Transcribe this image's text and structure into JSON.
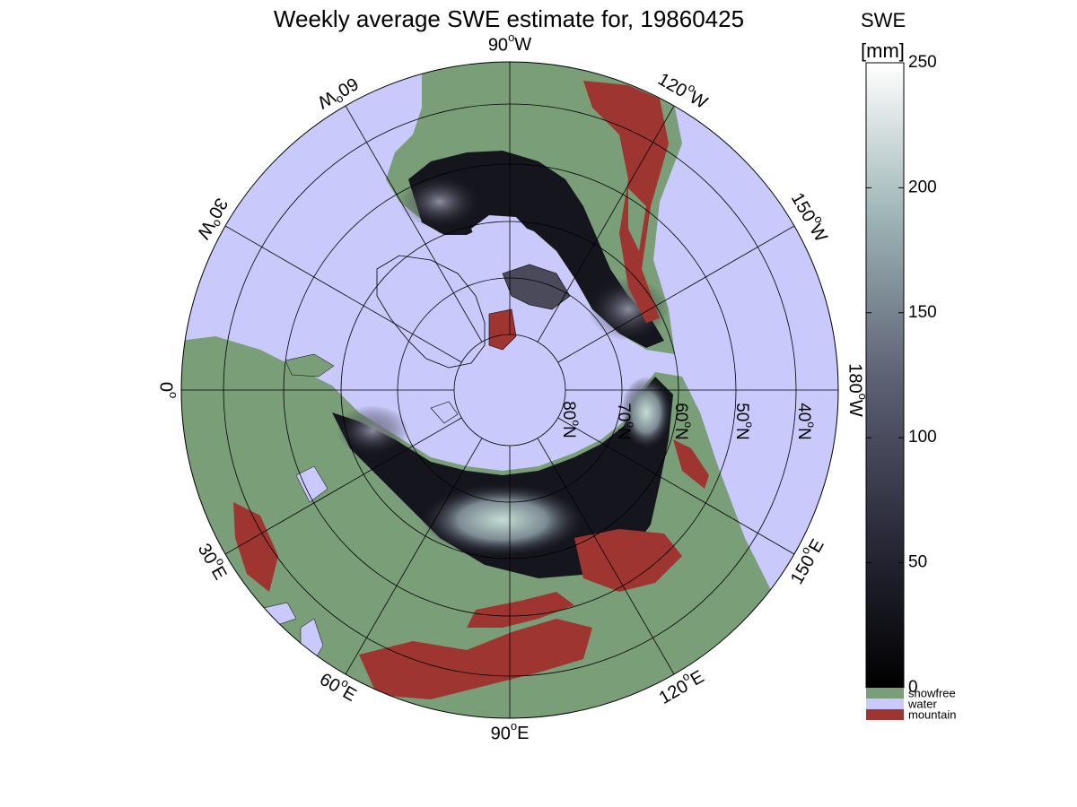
{
  "title": "Weekly average SWE estimate for, 19860425",
  "colorbar": {
    "title_line1": "SWE",
    "title_line2": "[mm]",
    "ticks": [
      "0",
      "50",
      "100",
      "150",
      "200",
      "250"
    ],
    "tick_values": [
      0,
      50,
      100,
      150,
      200,
      250
    ],
    "range": [
      0,
      250
    ],
    "categories": [
      {
        "label": "snowfree",
        "color": "#7a9e78"
      },
      {
        "label": "water",
        "color": "#c9c9fb"
      },
      {
        "label": "mountain",
        "color": "#9e3531"
      }
    ]
  },
  "map": {
    "projection": "north polar stereographic",
    "longitude_labels": [
      {
        "text": "90°W",
        "main": "90",
        "suffix": "W",
        "lon": "90W"
      },
      {
        "text": "120°W",
        "main": "120",
        "suffix": "W",
        "lon": "120W"
      },
      {
        "text": "150°W",
        "main": "150",
        "suffix": "W",
        "lon": "150W"
      },
      {
        "text": "180°W",
        "main": "180",
        "suffix": "W",
        "lon": "180W"
      },
      {
        "text": "150°E",
        "main": "150",
        "suffix": "E",
        "lon": "150E"
      },
      {
        "text": "120°E",
        "main": "120",
        "suffix": "E",
        "lon": "120E"
      },
      {
        "text": "90°E",
        "main": "90",
        "suffix": "E",
        "lon": "90E"
      },
      {
        "text": "60°E",
        "main": "60",
        "suffix": "E",
        "lon": "60E"
      },
      {
        "text": "30°E",
        "main": "30",
        "suffix": "E",
        "lon": "30E"
      },
      {
        "text": "0°",
        "main": "0",
        "suffix": "",
        "lon": "0"
      },
      {
        "text": "30°W",
        "main": "30",
        "suffix": "W",
        "lon": "30W"
      },
      {
        "text": "60°W",
        "main": "60",
        "suffix": "W",
        "lon": "60W"
      }
    ],
    "latitude_labels": [
      {
        "text": "80°N",
        "main": "80",
        "suffix": "N",
        "lat": 80
      },
      {
        "text": "70°N",
        "main": "70",
        "suffix": "N",
        "lat": 70
      },
      {
        "text": "60°N",
        "main": "60",
        "suffix": "N",
        "lat": 60
      },
      {
        "text": "50°N",
        "main": "50",
        "suffix": "N",
        "lat": 50
      },
      {
        "text": "40°N",
        "main": "40",
        "suffix": "N",
        "lat": 40
      }
    ],
    "colors": {
      "water": "#c9c9fb",
      "snowfree": "#7a9e78",
      "mountain": "#9e3531",
      "snow_low": "#0b0b12",
      "snow_mid": "#5a5a72",
      "snow_high": "#b9d6cf"
    }
  }
}
